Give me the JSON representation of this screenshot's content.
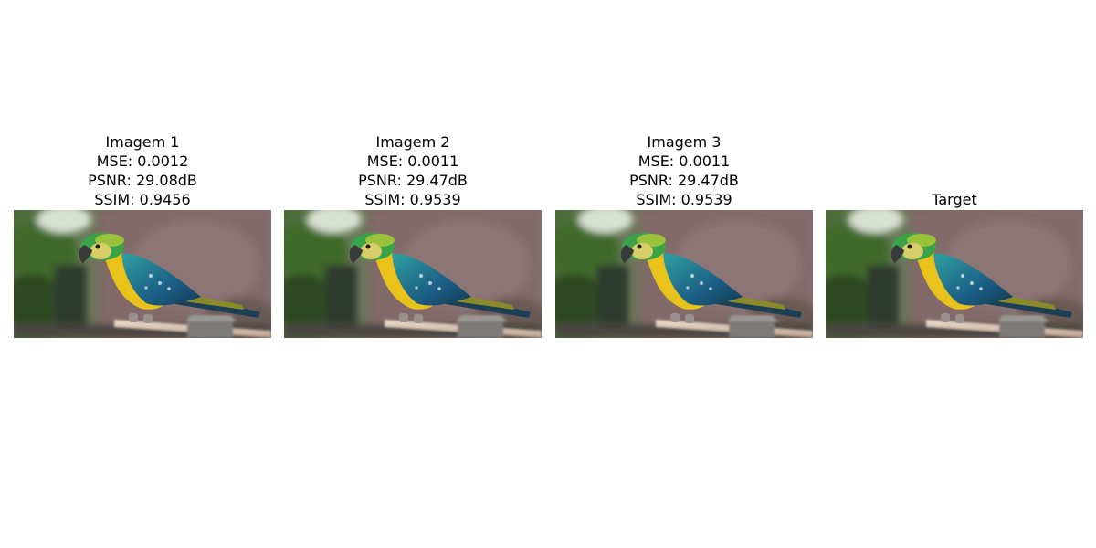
{
  "figure": {
    "panels": [
      {
        "lines": [
          "Imagem 1",
          "MSE: 0.0012",
          "PSNR: 29.08dB",
          "SSIM: 0.9456"
        ]
      },
      {
        "lines": [
          "Imagem 2",
          "MSE: 0.0011",
          "PSNR: 29.47dB",
          "SSIM: 0.9539"
        ]
      },
      {
        "lines": [
          "Imagem 3",
          "MSE: 0.0011",
          "PSNR: 29.47dB",
          "SSIM: 0.9539"
        ]
      },
      {
        "lines": [
          "Target"
        ]
      }
    ]
  }
}
